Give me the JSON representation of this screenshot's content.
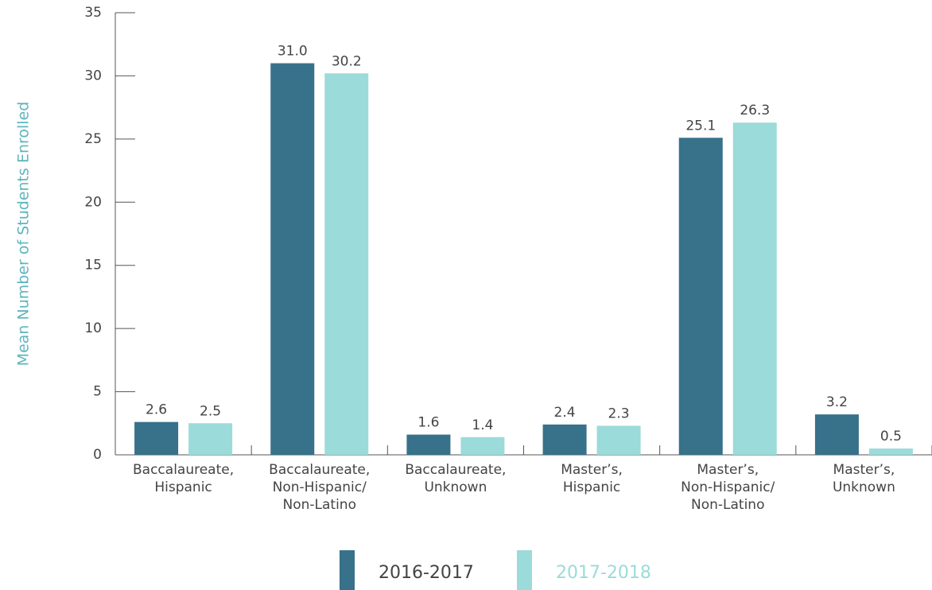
{
  "chart_data": {
    "type": "bar",
    "y_label": "Mean Number of Students Enrolled",
    "categories": [
      "Baccalaureate,\nHispanic",
      "Baccalaureate,\nNon-Hispanic/\nNon-Latino",
      "Baccalaureate,\nUnknown",
      "Master’s,\nHispanic",
      "Master’s,\nNon-Hispanic/\nNon-Latino",
      "Master’s,\nUnknown"
    ],
    "series": [
      {
        "name": "2016-2017",
        "color": "#37718a",
        "values": [
          2.6,
          31.0,
          1.6,
          2.4,
          25.1,
          3.2
        ],
        "value_labels": [
          "2.6",
          "31.0",
          "1.6",
          "2.4",
          "25.1",
          "3.2"
        ]
      },
      {
        "name": "2017-2018",
        "color": "#9bdbd9",
        "values": [
          2.5,
          30.2,
          1.4,
          2.3,
          26.3,
          0.5
        ],
        "value_labels": [
          "2.5",
          "30.2",
          "1.4",
          "2.3",
          "26.3",
          "0.5"
        ]
      }
    ],
    "ylim": [
      0,
      35
    ],
    "yticks": [
      0,
      5,
      10,
      15,
      20,
      25,
      30,
      35
    ],
    "legend": "bottom"
  }
}
